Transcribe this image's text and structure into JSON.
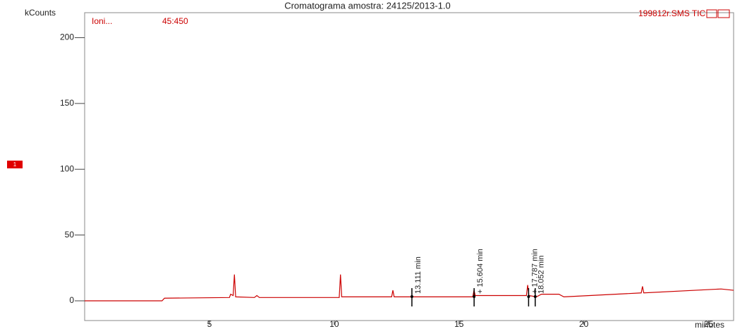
{
  "chart_data": {
    "type": "line",
    "title": "Cromatograma amostra: 24125/2013-1.0",
    "xlabel": "minutes",
    "ylabel": "kCounts",
    "legend_left": [
      "Ioni...",
      "45:450"
    ],
    "legend_right": "199812r.SMS TIC",
    "trace_marker": "1",
    "x": [
      0,
      3.1,
      3.2,
      5.8,
      5.85,
      5.95,
      6.0,
      6.05,
      6.8,
      6.9,
      7.0,
      10.2,
      10.25,
      10.3,
      12.3,
      12.35,
      12.4,
      15.55,
      15.6,
      15.65,
      17.7,
      17.75,
      17.8,
      18.1,
      18.3,
      19.0,
      19.2,
      22.3,
      22.35,
      22.4,
      25.5,
      26
    ],
    "series": [
      {
        "name": "199812r.SMS TIC",
        "color": "#cc0000",
        "values": [
          0,
          0,
          2,
          2.5,
          5,
          4,
          20,
          3,
          2.5,
          4,
          2.5,
          2.5,
          20,
          3,
          3,
          8,
          3,
          3,
          8,
          4,
          4,
          12,
          4,
          3,
          5,
          5,
          3,
          6,
          11,
          6,
          9,
          8
        ]
      }
    ],
    "markers": [
      {
        "x": 13.111,
        "label": "13.111 min"
      },
      {
        "x": 15.604,
        "label": "+ 15.604 min"
      },
      {
        "x": 17.787,
        "label": "+ 17.787 min"
      },
      {
        "x": 18.052,
        "label": "18.052 min"
      }
    ],
    "xlim": [
      0,
      26
    ],
    "xticks": [
      5,
      10,
      15,
      20,
      25
    ],
    "ylim": [
      -15,
      219
    ],
    "yticks": [
      0,
      50,
      100,
      150,
      200
    ]
  }
}
